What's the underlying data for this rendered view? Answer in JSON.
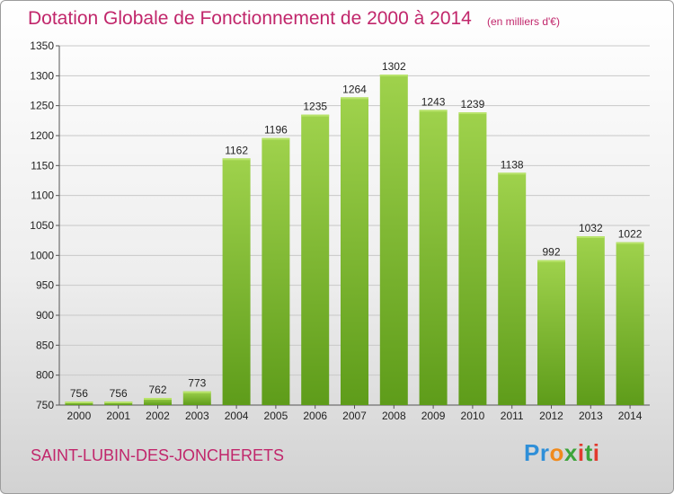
{
  "header": {
    "title": "Dotation Globale de Fonctionnement de 2000 à 2014",
    "unit_note": "(en milliers d'€)"
  },
  "footer": {
    "commune": "SAINT-LUBIN-DES-JONCHERETS",
    "logo": "Proxiti"
  },
  "colors": {
    "title": "#c1266b",
    "bar_top": "#9fd24c",
    "bar_bottom": "#5e9c1a",
    "grid": "#c8c8c8"
  },
  "chart_data": {
    "type": "bar",
    "title": "Dotation Globale de Fonctionnement de 2000 à 2014",
    "subtitle": "(en milliers d'€)",
    "categories": [
      "2000",
      "2001",
      "2002",
      "2003",
      "2004",
      "2005",
      "2006",
      "2007",
      "2008",
      "2009",
      "2010",
      "2011",
      "2012",
      "2013",
      "2014"
    ],
    "values": [
      756,
      756,
      762,
      773,
      1162,
      1196,
      1235,
      1264,
      1302,
      1243,
      1239,
      1138,
      992,
      1032,
      1022
    ],
    "ylim": [
      750,
      1350
    ],
    "yticks": [
      750,
      800,
      850,
      900,
      950,
      1000,
      1050,
      1100,
      1150,
      1200,
      1250,
      1300,
      1350
    ],
    "grid": true,
    "data_labels": true
  }
}
